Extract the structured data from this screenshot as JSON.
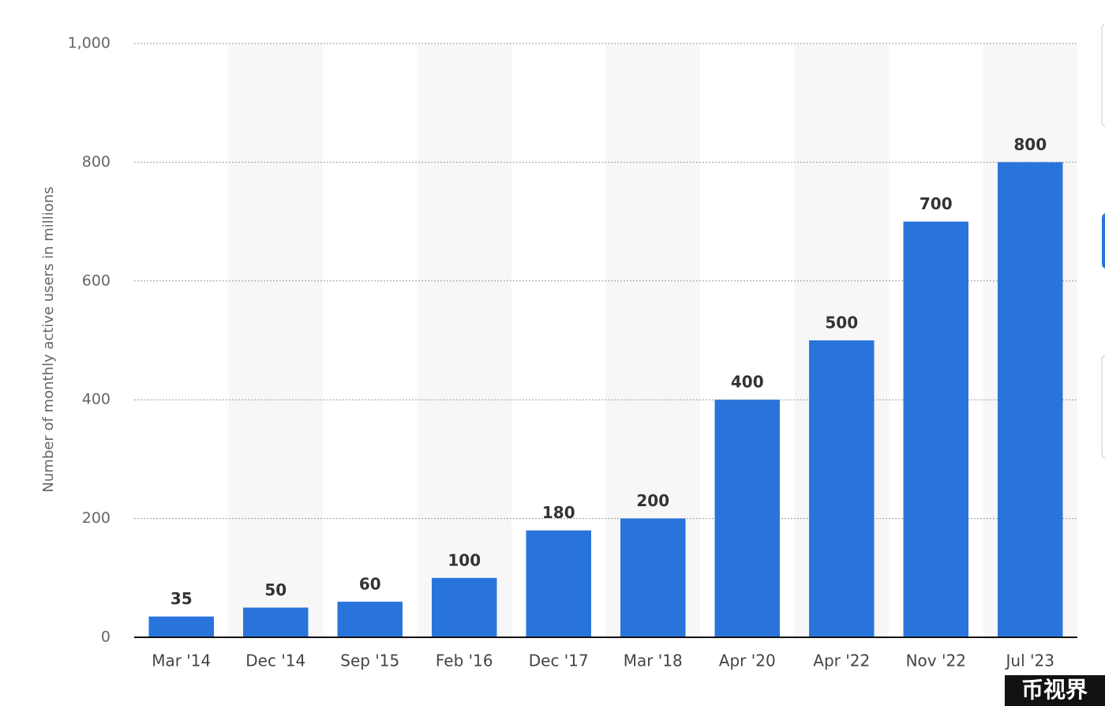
{
  "chart_data": {
    "type": "bar",
    "y_label": "Number of monthly active users in millions",
    "categories": [
      "Mar '14",
      "Dec '14",
      "Sep '15",
      "Feb '16",
      "Dec '17",
      "Mar '18",
      "Apr '20",
      "Apr '22",
      "Nov '22",
      "Jul '23"
    ],
    "values": [
      35,
      50,
      60,
      100,
      180,
      200,
      400,
      500,
      700,
      800
    ],
    "color": "#2874db",
    "ylim": [
      0,
      1000
    ],
    "yticks": [
      0,
      200,
      400,
      600,
      800,
      {
        "value": 1000,
        "label": "1,000"
      }
    ],
    "grid": true
  },
  "watermark": "币视界"
}
